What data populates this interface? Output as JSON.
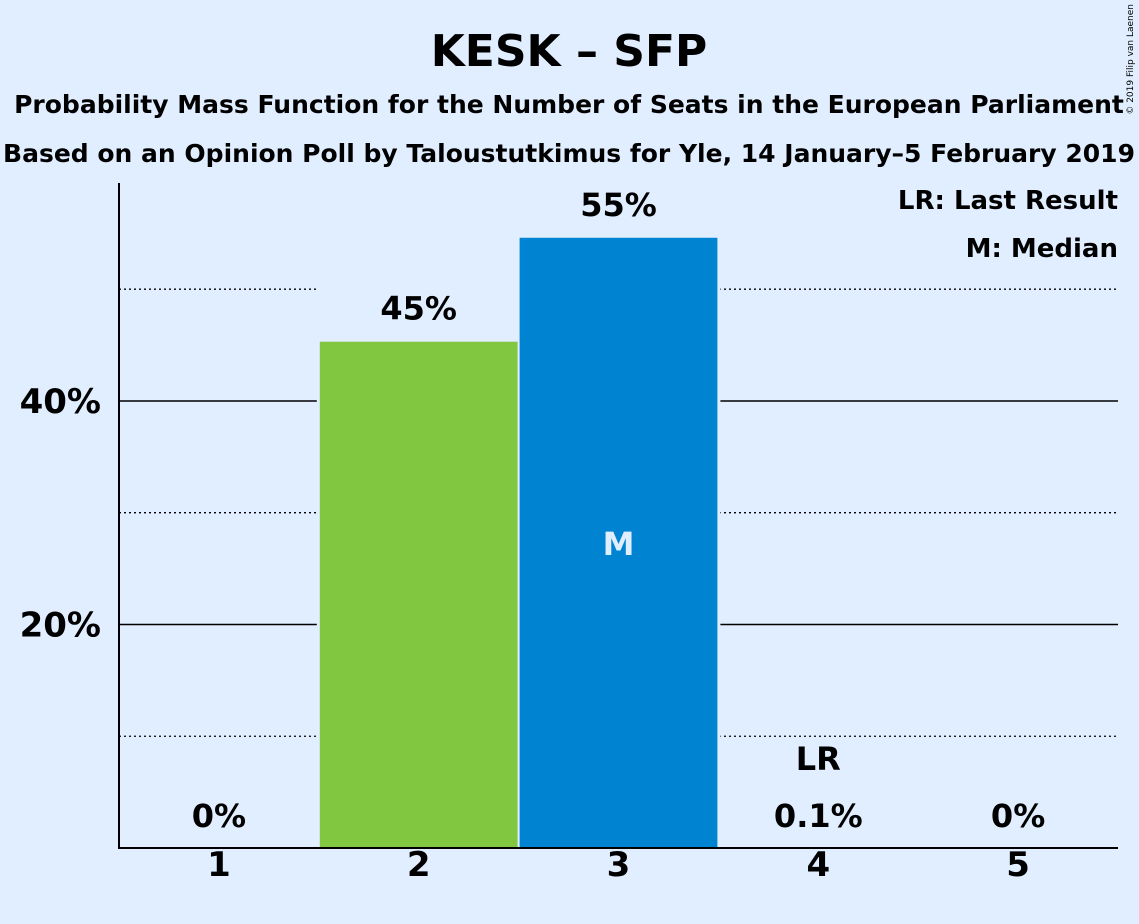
{
  "chart_data": {
    "type": "bar",
    "title": "KESK – SFP",
    "subtitle_lines": [
      "Probability Mass Function for the Number of Seats in the European Parliament",
      "Based on an Opinion Poll by Taloustutkimus for Yle, 14 January–5 February 2019"
    ],
    "categories": [
      "1",
      "2",
      "3",
      "4",
      "5"
    ],
    "values": [
      0,
      45.3,
      54.6,
      0.1,
      0
    ],
    "value_labels": [
      "0%",
      "45%",
      "55%",
      "0.1%",
      "0%"
    ],
    "bar_colors": [
      "#81c73f",
      "#81c73f",
      "#0084d1",
      "#0084d1",
      "#0084d1"
    ],
    "ylim": [
      0,
      59.5
    ],
    "y_major_ticks": [
      20,
      40
    ],
    "y_tick_labels": [
      "20%",
      "40%"
    ],
    "y_minor_lines": [
      10,
      30,
      50
    ],
    "median": {
      "category": "3",
      "label": "M"
    },
    "last_result": {
      "category": "4",
      "label": "LR"
    },
    "legend": {
      "placement": "top-right",
      "items": [
        "LR: Last Result",
        "M: Median"
      ]
    },
    "grid": true
  },
  "copyright": "© 2019 Filip van Laenen"
}
